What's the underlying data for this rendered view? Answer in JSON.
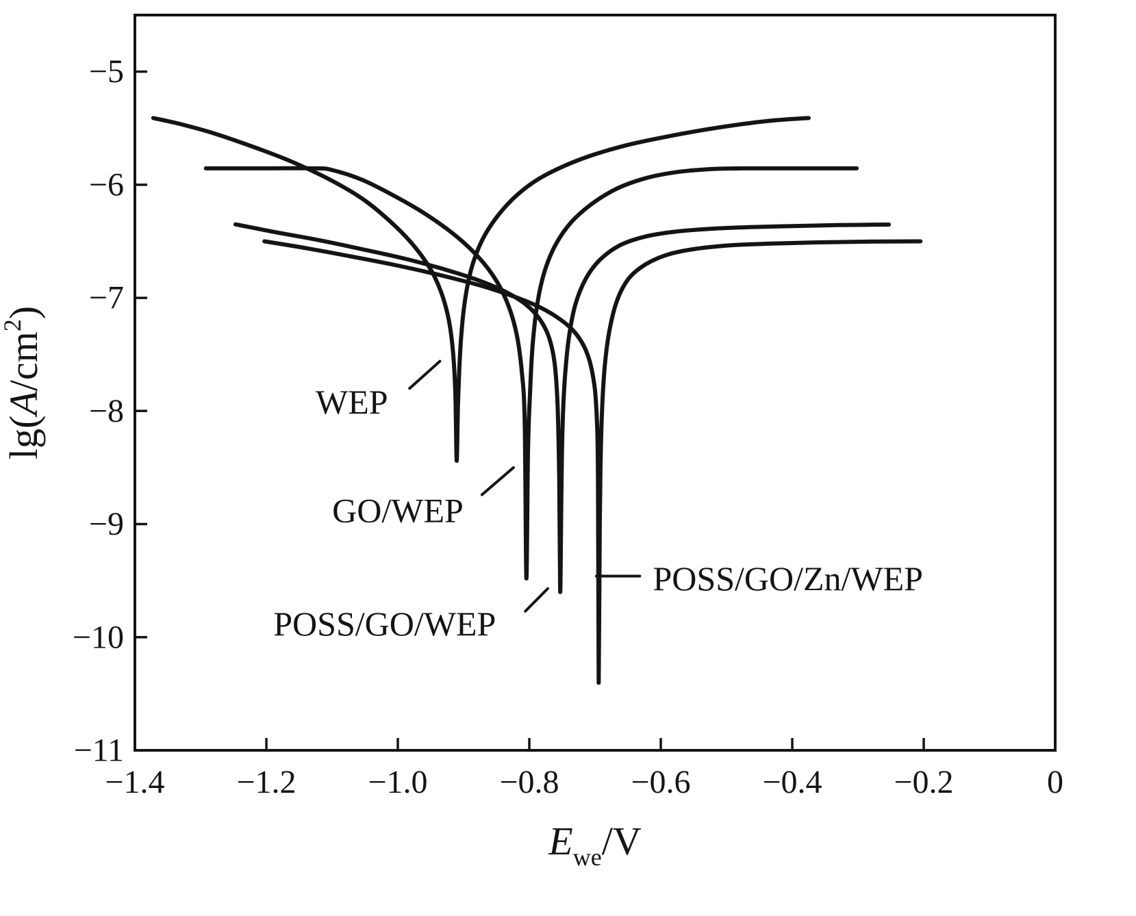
{
  "figure": {
    "background": "#ffffff",
    "ink": "#141414"
  },
  "chart_data": {
    "type": "line",
    "title": "",
    "xlabel": "Ewe/V",
    "ylabel": "lg(A/cm2)",
    "xlabel_parts": [
      {
        "t": "E",
        "style": "italic"
      },
      {
        "t": "we",
        "style": "sub"
      },
      {
        "t": "/V",
        "style": "normal"
      }
    ],
    "ylabel_parts": [
      {
        "t": "lg(",
        "style": "normal"
      },
      {
        "t": "A",
        "style": "italic"
      },
      {
        "t": "/cm",
        "style": "normal"
      },
      {
        "t": "2",
        "style": "sup"
      },
      {
        "t": ")",
        "style": "normal"
      }
    ],
    "x_range": [
      -1.4,
      0
    ],
    "y_range_draw": [
      -11,
      -4.5
    ],
    "xticks": [
      -1.4,
      -1.2,
      -1.0,
      -0.8,
      -0.6,
      -0.4,
      -0.2,
      0
    ],
    "yticks": [
      -5,
      -6,
      -7,
      -8,
      -9,
      -10,
      -11
    ],
    "grid": false,
    "legend_position": "none",
    "line_color": "#141414",
    "series": [
      {
        "name": "WEP",
        "ecorr_v": -0.91,
        "dip_lg": -8.44,
        "points": [
          [
            -1.372,
            -5.41
          ],
          [
            -1.33,
            -5.465
          ],
          [
            -1.28,
            -5.545
          ],
          [
            -1.22,
            -5.665
          ],
          [
            -1.16,
            -5.8
          ],
          [
            -1.1,
            -5.965
          ],
          [
            -1.05,
            -6.14
          ],
          [
            -1.005,
            -6.36
          ],
          [
            -0.972,
            -6.565
          ],
          [
            -0.948,
            -6.77
          ],
          [
            -0.932,
            -6.985
          ],
          [
            -0.922,
            -7.21
          ],
          [
            -0.916,
            -7.48
          ],
          [
            -0.9125,
            -7.85
          ],
          [
            -0.9105,
            -8.44
          ],
          [
            -0.9085,
            -7.95
          ],
          [
            -0.905,
            -7.46
          ],
          [
            -0.899,
            -7.07
          ],
          [
            -0.889,
            -6.76
          ],
          [
            -0.873,
            -6.505
          ],
          [
            -0.852,
            -6.305
          ],
          [
            -0.825,
            -6.125
          ],
          [
            -0.793,
            -5.975
          ],
          [
            -0.755,
            -5.855
          ],
          [
            -0.71,
            -5.75
          ],
          [
            -0.655,
            -5.655
          ],
          [
            -0.6,
            -5.585
          ],
          [
            -0.545,
            -5.525
          ],
          [
            -0.49,
            -5.475
          ],
          [
            -0.435,
            -5.435
          ],
          [
            -0.39,
            -5.415
          ],
          [
            -0.375,
            -5.41
          ]
        ]
      },
      {
        "name": "GO/WEP",
        "ecorr_v": -0.805,
        "dip_lg": -9.48,
        "points": [
          [
            -1.292,
            -5.855
          ],
          [
            -1.2,
            -5.855
          ],
          [
            -1.125,
            -5.855
          ],
          [
            -1.1,
            -5.87
          ],
          [
            -1.055,
            -5.955
          ],
          [
            -1.005,
            -6.1
          ],
          [
            -0.955,
            -6.27
          ],
          [
            -0.91,
            -6.46
          ],
          [
            -0.875,
            -6.655
          ],
          [
            -0.849,
            -6.86
          ],
          [
            -0.831,
            -7.08
          ],
          [
            -0.819,
            -7.33
          ],
          [
            -0.8115,
            -7.65
          ],
          [
            -0.807,
            -8.1
          ],
          [
            -0.8045,
            -9.48
          ],
          [
            -0.802,
            -8.35
          ],
          [
            -0.799,
            -7.85
          ],
          [
            -0.795,
            -7.42
          ],
          [
            -0.788,
            -7.06
          ],
          [
            -0.777,
            -6.77
          ],
          [
            -0.76,
            -6.53
          ],
          [
            -0.736,
            -6.33
          ],
          [
            -0.705,
            -6.17
          ],
          [
            -0.667,
            -6.035
          ],
          [
            -0.625,
            -5.945
          ],
          [
            -0.578,
            -5.89
          ],
          [
            -0.525,
            -5.862
          ],
          [
            -0.475,
            -5.855
          ],
          [
            -0.4,
            -5.855
          ],
          [
            -0.302,
            -5.855
          ]
        ]
      },
      {
        "name": "POSS/GO/WEP",
        "ecorr_v": -0.755,
        "dip_lg": -9.6,
        "points": [
          [
            -1.247,
            -6.35
          ],
          [
            -1.19,
            -6.415
          ],
          [
            -1.12,
            -6.49
          ],
          [
            -1.05,
            -6.575
          ],
          [
            -0.985,
            -6.66
          ],
          [
            -0.925,
            -6.755
          ],
          [
            -0.875,
            -6.85
          ],
          [
            -0.835,
            -6.95
          ],
          [
            -0.805,
            -7.06
          ],
          [
            -0.784,
            -7.19
          ],
          [
            -0.77,
            -7.35
          ],
          [
            -0.7615,
            -7.58
          ],
          [
            -0.757,
            -7.95
          ],
          [
            -0.7545,
            -8.6
          ],
          [
            -0.753,
            -9.6
          ],
          [
            -0.7512,
            -8.75
          ],
          [
            -0.7495,
            -8.15
          ],
          [
            -0.746,
            -7.72
          ],
          [
            -0.74,
            -7.36
          ],
          [
            -0.73,
            -7.06
          ],
          [
            -0.714,
            -6.83
          ],
          [
            -0.692,
            -6.66
          ],
          [
            -0.662,
            -6.535
          ],
          [
            -0.625,
            -6.46
          ],
          [
            -0.578,
            -6.415
          ],
          [
            -0.525,
            -6.39
          ],
          [
            -0.465,
            -6.375
          ],
          [
            -0.4,
            -6.365
          ],
          [
            -0.33,
            -6.357
          ],
          [
            -0.253,
            -6.352
          ]
        ]
      },
      {
        "name": "POSS/GO/Zn/WEP",
        "ecorr_v": -0.695,
        "dip_lg": -10.4,
        "points": [
          [
            -1.203,
            -6.5
          ],
          [
            -1.14,
            -6.56
          ],
          [
            -1.07,
            -6.635
          ],
          [
            -1.0,
            -6.715
          ],
          [
            -0.935,
            -6.8
          ],
          [
            -0.875,
            -6.89
          ],
          [
            -0.825,
            -6.985
          ],
          [
            -0.785,
            -7.08
          ],
          [
            -0.753,
            -7.19
          ],
          [
            -0.73,
            -7.31
          ],
          [
            -0.7135,
            -7.47
          ],
          [
            -0.7035,
            -7.68
          ],
          [
            -0.698,
            -7.98
          ],
          [
            -0.6955,
            -8.6
          ],
          [
            -0.6945,
            -10.4
          ],
          [
            -0.6928,
            -9.0
          ],
          [
            -0.6912,
            -8.35
          ],
          [
            -0.6885,
            -7.89
          ],
          [
            -0.684,
            -7.53
          ],
          [
            -0.6765,
            -7.24
          ],
          [
            -0.665,
            -7.0
          ],
          [
            -0.6475,
            -6.82
          ],
          [
            -0.622,
            -6.7
          ],
          [
            -0.588,
            -6.615
          ],
          [
            -0.545,
            -6.565
          ],
          [
            -0.493,
            -6.535
          ],
          [
            -0.432,
            -6.52
          ],
          [
            -0.365,
            -6.51
          ],
          [
            -0.29,
            -6.503
          ],
          [
            -0.205,
            -6.5
          ]
        ]
      }
    ],
    "annotations": [
      {
        "text": "WEP",
        "x": -1.07,
        "y": -7.92,
        "anchor": "middle",
        "leader": [
          -0.982,
          -7.8,
          -0.936,
          -7.56
        ]
      },
      {
        "text": "GO/WEP",
        "x": -1.0,
        "y": -8.88,
        "anchor": "middle",
        "leader": [
          -0.872,
          -8.74,
          -0.824,
          -8.5
        ]
      },
      {
        "text": "POSS/GO/WEP",
        "x": -1.02,
        "y": -9.88,
        "anchor": "middle",
        "leader": [
          -0.806,
          -9.77,
          -0.772,
          -9.57
        ]
      },
      {
        "text": "POSS/GO/Zn/WEP",
        "x": -0.612,
        "y": -9.48,
        "anchor": "start",
        "leader": [
          -0.632,
          -9.46,
          -0.698,
          -9.46
        ]
      }
    ]
  }
}
